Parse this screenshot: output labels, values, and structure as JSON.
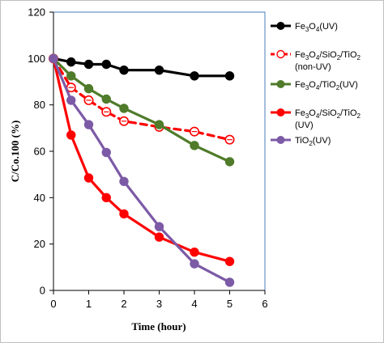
{
  "chart_data": {
    "type": "line",
    "title": "",
    "xlabel": "Time (hour)",
    "ylabel": "C/Co.100 (%)",
    "xlim": [
      0,
      6
    ],
    "ylim": [
      0,
      120
    ],
    "xticks": [
      "0",
      "1",
      "2",
      "3",
      "4",
      "5",
      "6"
    ],
    "yticks": [
      "0",
      "20",
      "40",
      "60",
      "80",
      "100",
      "120"
    ],
    "grid": false,
    "legend_position": "right",
    "series": [
      {
        "key": "fe3o4_uv",
        "legend": [
          {
            "t": "Fe"
          },
          {
            "t": "3",
            "sub": true
          },
          {
            "t": "O"
          },
          {
            "t": "4",
            "sub": true
          },
          {
            "t": "(UV)"
          }
        ],
        "color": "#000000",
        "dashed": false,
        "marker": "filled-circle",
        "x": [
          0,
          0.5,
          1,
          1.5,
          2,
          3,
          4,
          5
        ],
        "y": [
          100,
          98.5,
          97.5,
          97.5,
          95,
          95,
          92.5,
          92.5
        ]
      },
      {
        "key": "fe3o4_sio2_tio2_non_uv",
        "legend": [
          {
            "t": "Fe"
          },
          {
            "t": "3",
            "sub": true
          },
          {
            "t": "O"
          },
          {
            "t": "4",
            "sub": true
          },
          {
            "t": "/SiO"
          },
          {
            "t": "2",
            "sub": true
          },
          {
            "t": "/TiO"
          },
          {
            "t": "2",
            "sub": true
          },
          {
            "t": "(non-UV)",
            "newline": true
          }
        ],
        "color": "#ff0000",
        "dashed": true,
        "marker": "open-circle",
        "x": [
          0,
          0.5,
          1,
          1.5,
          2,
          3,
          4,
          5
        ],
        "y": [
          100,
          87.5,
          82,
          77,
          73,
          70.5,
          68.5,
          65
        ]
      },
      {
        "key": "fe3o4_tio2_uv",
        "legend": [
          {
            "t": "Fe"
          },
          {
            "t": "3",
            "sub": true
          },
          {
            "t": "O"
          },
          {
            "t": "4",
            "sub": true
          },
          {
            "t": "/TiO"
          },
          {
            "t": "2",
            "sub": true
          },
          {
            "t": "(UV)"
          }
        ],
        "color": "#4f7b2a",
        "dashed": false,
        "marker": "filled-circle",
        "x": [
          0,
          0.5,
          1,
          1.5,
          2,
          3,
          4,
          5
        ],
        "y": [
          100,
          92.5,
          87,
          82.5,
          78.5,
          71.5,
          62.5,
          55.5
        ]
      },
      {
        "key": "fe3o4_sio2_tio2_uv",
        "legend": [
          {
            "t": "Fe"
          },
          {
            "t": "3",
            "sub": true
          },
          {
            "t": "O"
          },
          {
            "t": "4",
            "sub": true
          },
          {
            "t": "/SiO"
          },
          {
            "t": "2",
            "sub": true
          },
          {
            "t": "/TiO"
          },
          {
            "t": "2",
            "sub": true
          },
          {
            "t": "(UV)",
            "newline": true
          }
        ],
        "color": "#ff0000",
        "dashed": false,
        "marker": "filled-circle",
        "x": [
          0,
          0.5,
          1,
          1.5,
          2,
          3,
          4,
          5
        ],
        "y": [
          100,
          67,
          48.5,
          40,
          33,
          23,
          16.5,
          12.5
        ]
      },
      {
        "key": "tio2_uv",
        "legend": [
          {
            "t": "TiO"
          },
          {
            "t": "2",
            "sub": true
          },
          {
            "t": "(UV)"
          }
        ],
        "color": "#7c5aa6",
        "dashed": false,
        "marker": "filled-circle",
        "x": [
          0,
          0.5,
          1,
          1.5,
          2,
          3,
          4,
          5
        ],
        "y": [
          100,
          82,
          71.5,
          59.5,
          47,
          27.5,
          11.5,
          3.5
        ]
      }
    ]
  }
}
